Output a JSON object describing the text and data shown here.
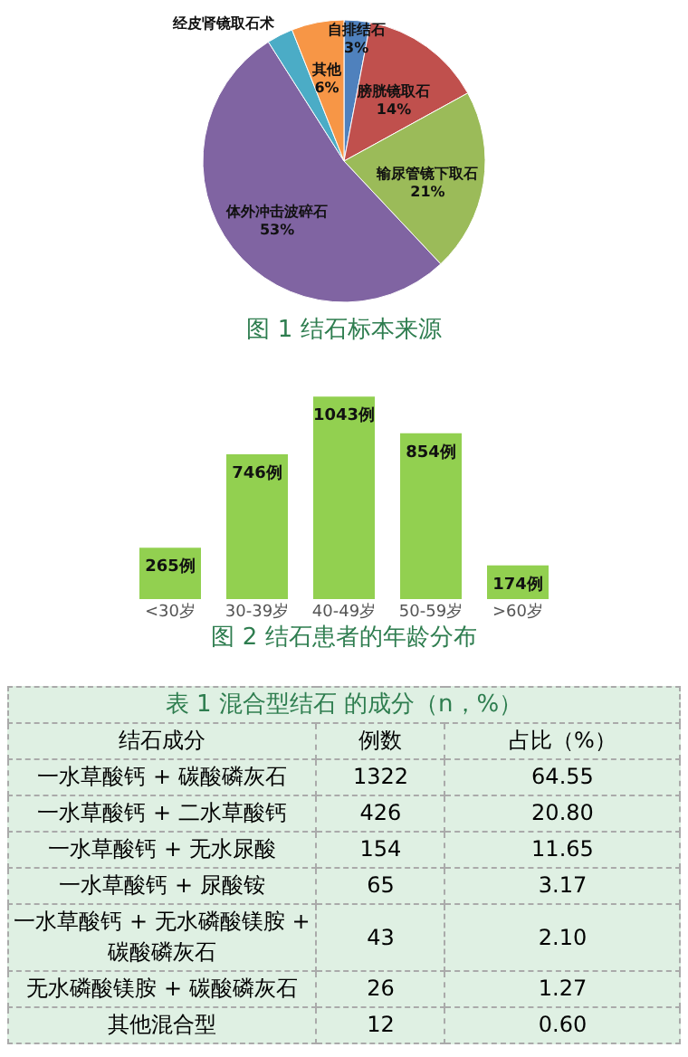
{
  "chart_data": [
    {
      "type": "pie",
      "title": "图 1 结石标本来源",
      "categories": [
        "自排结石",
        "膀胱镜取石",
        "输尿管镜下取石",
        "体外冲击波碎石",
        "经皮肾镜取石术",
        "其他"
      ],
      "values": [
        3,
        14,
        21,
        53,
        3,
        6
      ],
      "colors": [
        "#4f81bd",
        "#c0504d",
        "#9bbb59",
        "#8064a2",
        "#4bacc6",
        "#f79646"
      ],
      "value_labels": [
        "3%",
        "14%",
        "21%",
        "53%",
        null,
        "6%"
      ]
    },
    {
      "type": "bar",
      "title": "图 2 结石患者的年龄分布",
      "categories": [
        "<30岁",
        "30-39岁",
        "40-49岁",
        "50-59岁",
        ">60岁"
      ],
      "values": [
        265,
        746,
        1043,
        854,
        174
      ],
      "color": "#92d050",
      "value_labels": [
        "265例",
        "746例",
        "1043例",
        "854例",
        "174例"
      ]
    },
    {
      "type": "other",
      "data_labels": true,
      "title": "表 1 混合型结石 的成分（n，%）",
      "xlabel": "结石成分",
      "categories": [
        "一水草酸钙 + 碳酸磷灰石",
        "一水草酸钙 + 二水草酸钙",
        "一水草酸钙 + 无水尿酸",
        "一水草酸钙 + 尿酸铵",
        "一水草酸钙 + 无水磷酸镁胺 + 碳酸磷灰石",
        "无水磷酸镁胺 + 碳酸磷灰石",
        "其他混合型"
      ],
      "series": [
        {
          "name": "例数",
          "values": [
            1322,
            426,
            154,
            65,
            43,
            26,
            12
          ]
        },
        {
          "name": "占比（%）",
          "values": [
            64.55,
            20.8,
            11.65,
            3.17,
            2.1,
            1.27,
            0.6
          ],
          "value_labels": [
            "64.55",
            "20.80",
            "11.65",
            "3.17",
            "2.10",
            "1.27",
            "0.60"
          ]
        }
      ]
    }
  ]
}
